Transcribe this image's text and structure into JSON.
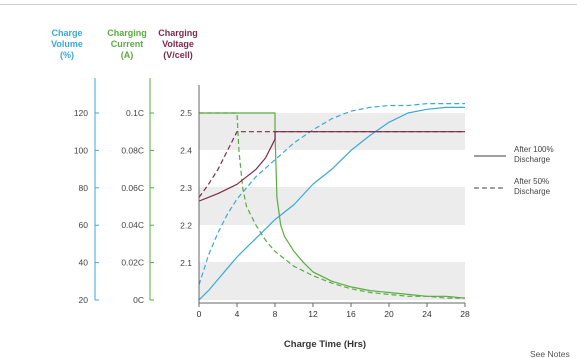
{
  "chart_data": {
    "type": "line",
    "xlabel": "Charge Time (Hrs)",
    "xlim": [
      0,
      28
    ],
    "x_ticks": [
      "0",
      "4",
      "8",
      "12",
      "16",
      "20",
      "24",
      "28"
    ],
    "axes": [
      {
        "key": "volume",
        "label": [
          "Charge",
          "Volume",
          "(%)"
        ],
        "color": "#3aa9d6",
        "ticks": [
          "20",
          "40",
          "60",
          "80",
          "100",
          "120"
        ]
      },
      {
        "key": "current",
        "label": [
          "Charging",
          "Current",
          "(A)"
        ],
        "color": "#5aab42",
        "ticks": [
          "0C",
          "0.02C",
          "0.04C",
          "0.06C",
          "0.08C",
          "0.1C"
        ]
      },
      {
        "key": "voltage",
        "label": [
          "Charging",
          "Voltage",
          "(V/cell)"
        ],
        "color": "#7d2a4a",
        "ticks": [
          "2.1",
          "2.2",
          "2.3",
          "2.4",
          "2.5"
        ]
      }
    ],
    "legend": [
      {
        "label": [
          "After 100%",
          "Discharge"
        ],
        "style": "solid",
        "color": "#666666"
      },
      {
        "label": [
          "After 50%",
          "Discharge"
        ],
        "style": "dashed",
        "color": "#666666"
      }
    ],
    "series": [
      {
        "key": "volume_100",
        "axis": "volume",
        "style": "solid",
        "color": "#3aa9d6",
        "x": [
          0,
          1,
          2,
          3,
          4,
          5,
          6,
          8,
          10,
          12,
          14,
          16,
          18,
          20,
          22,
          24,
          26,
          28
        ],
        "y": [
          20,
          25,
          31,
          37,
          43,
          48,
          53,
          63,
          71,
          82,
          90,
          100,
          108,
          115,
          120,
          122,
          123,
          123
        ]
      },
      {
        "key": "volume_50",
        "axis": "volume",
        "style": "dashed",
        "color": "#3aa9d6",
        "x": [
          0,
          1,
          2,
          3,
          4,
          6,
          8,
          10,
          12,
          14,
          16,
          18,
          20,
          22,
          24,
          26,
          28
        ],
        "y": [
          28,
          44,
          56,
          66,
          74,
          86,
          95,
          104,
          111,
          117,
          121,
          123,
          124,
          124,
          125,
          125,
          125
        ]
      },
      {
        "key": "current_100",
        "axis": "current",
        "style": "solid",
        "color": "#5aab42",
        "x": [
          0,
          8,
          8,
          8.2,
          8.6,
          9,
          10,
          11,
          12,
          14,
          16,
          18,
          20,
          22,
          24,
          26,
          28
        ],
        "y": [
          0.1,
          0.1,
          0.09,
          0.055,
          0.04,
          0.034,
          0.026,
          0.02,
          0.015,
          0.01,
          0.007,
          0.005,
          0.004,
          0.003,
          0.002,
          0.002,
          0.001
        ]
      },
      {
        "key": "current_50",
        "axis": "current",
        "style": "dashed",
        "color": "#5aab42",
        "x": [
          0,
          4,
          4.2,
          4.6,
          5,
          6,
          7,
          8,
          10,
          12,
          14,
          16,
          18,
          20,
          22,
          24,
          26,
          28
        ],
        "y": [
          0.1,
          0.1,
          0.08,
          0.06,
          0.05,
          0.04,
          0.032,
          0.026,
          0.018,
          0.013,
          0.009,
          0.006,
          0.004,
          0.003,
          0.002,
          0.002,
          0.001,
          0.001
        ]
      },
      {
        "key": "voltage_100",
        "axis": "voltage",
        "style": "solid",
        "color": "#7d2a4a",
        "x": [
          0,
          2,
          4,
          6,
          7,
          7.6,
          8,
          8,
          28
        ],
        "y": [
          2.265,
          2.285,
          2.31,
          2.35,
          2.38,
          2.41,
          2.43,
          2.45,
          2.45
        ]
      },
      {
        "key": "voltage_50",
        "axis": "voltage",
        "style": "dashed",
        "color": "#7d2a4a",
        "x": [
          0,
          1,
          2,
          3,
          3.6,
          4,
          8,
          28
        ],
        "y": [
          2.275,
          2.31,
          2.35,
          2.4,
          2.43,
          2.45,
          2.45,
          2.45
        ]
      }
    ]
  },
  "footer": {
    "see_notes": "See Notes"
  }
}
